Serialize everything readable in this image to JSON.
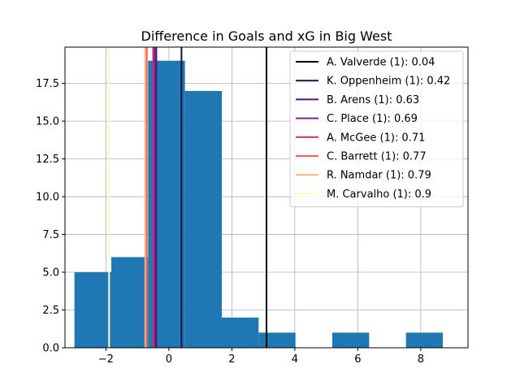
{
  "chart_data": {
    "type": "bar",
    "title": "Difference in Goals and xG in Big West",
    "xlabel": "",
    "ylabel": "",
    "xlim": [
      -3.3,
      9.5
    ],
    "ylim": [
      0,
      19.9
    ],
    "grid": true,
    "legend_position": "top-right",
    "bar_color": "#1f77b4",
    "x_ticks": [
      -2,
      0,
      2,
      4,
      6,
      8
    ],
    "x_tick_labels": [
      "−2",
      "0",
      "2",
      "4",
      "6",
      "8"
    ],
    "y_ticks": [
      0,
      2.5,
      5,
      7.5,
      10,
      12.5,
      15,
      17.5
    ],
    "y_tick_labels": [
      "0.0",
      "2.5",
      "5.0",
      "7.5",
      "10.0",
      "12.5",
      "15.0",
      "17.5"
    ],
    "bins": [
      {
        "x0": -3.0,
        "x1": -1.83,
        "count": 5
      },
      {
        "x0": -1.83,
        "x1": -0.66,
        "count": 6
      },
      {
        "x0": -0.66,
        "x1": 0.51,
        "count": 19
      },
      {
        "x0": 0.51,
        "x1": 1.68,
        "count": 17
      },
      {
        "x0": 1.68,
        "x1": 2.85,
        "count": 2
      },
      {
        "x0": 2.85,
        "x1": 4.02,
        "count": 1
      },
      {
        "x0": 4.02,
        "x1": 5.19,
        "count": 0
      },
      {
        "x0": 5.19,
        "x1": 6.36,
        "count": 1
      },
      {
        "x0": 6.36,
        "x1": 7.53,
        "count": 0
      },
      {
        "x0": 7.53,
        "x1": 8.7,
        "count": 1
      }
    ],
    "series": [
      {
        "name": "A. Valverde (1): 0.04",
        "x": 3.1,
        "color": "#000000"
      },
      {
        "name": "K. Oppenheim (1): 0.42",
        "x": 0.4,
        "color": "#1c1044"
      },
      {
        "name": "B. Arens (1): 0.63",
        "x": -0.4,
        "color": "#51127c"
      },
      {
        "name": "C. Place (1): 0.69",
        "x": -0.45,
        "color": "#832681"
      },
      {
        "name": "A. McGee (1): 0.71",
        "x": -0.5,
        "color": "#b73779"
      },
      {
        "name": "C. Barrett (1): 0.77",
        "x": -0.7,
        "color": "#f1605d"
      },
      {
        "name": "R. Namdar (1): 0.79",
        "x": -0.75,
        "color": "#feb078"
      },
      {
        "name": "M. Carvalho (1): 0.9",
        "x": -1.9,
        "color": "#fcfdbf"
      }
    ]
  }
}
